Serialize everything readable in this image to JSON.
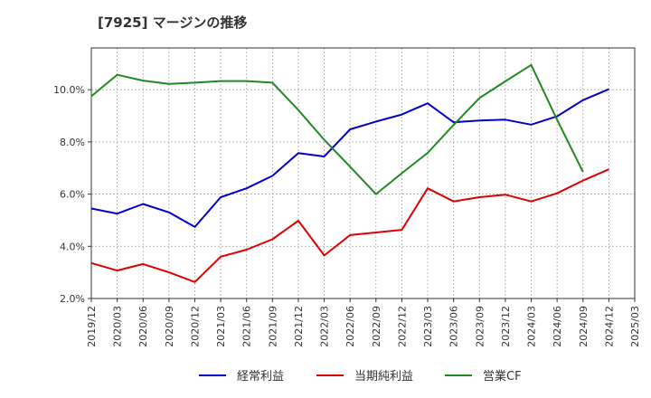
{
  "chart_data": {
    "type": "line",
    "title": "[7925]  マージンの推移",
    "xlabel": "",
    "ylabel": "",
    "y_unit": "%",
    "ylim": [
      2.0,
      11.6
    ],
    "y_ticks": [
      2.0,
      4.0,
      6.0,
      8.0,
      10.0
    ],
    "y_tick_labels": [
      "2.0%",
      "4.0%",
      "6.0%",
      "8.0%",
      "10.0%"
    ],
    "grid": true,
    "legend_position": "bottom",
    "categories": [
      "2019/12",
      "2020/03",
      "2020/06",
      "2020/09",
      "2020/12",
      "2021/03",
      "2021/06",
      "2021/09",
      "2021/12",
      "2022/03",
      "2022/06",
      "2022/09",
      "2022/12",
      "2023/03",
      "2023/06",
      "2023/09",
      "2023/12",
      "2024/03",
      "2024/06",
      "2024/09",
      "2024/12",
      "2025/03"
    ],
    "series": [
      {
        "name": "経常利益",
        "color": "#0000cc",
        "values": [
          5.45,
          5.25,
          5.62,
          5.3,
          4.74,
          5.88,
          6.22,
          6.7,
          7.57,
          7.44,
          8.48,
          8.78,
          9.05,
          9.48,
          8.75,
          8.82,
          8.85,
          8.66,
          8.98,
          9.6,
          10.02,
          null
        ]
      },
      {
        "name": "当期純利益",
        "color": "#dd0000",
        "values": [
          3.36,
          3.07,
          3.32,
          3.0,
          2.63,
          3.6,
          3.87,
          4.27,
          4.98,
          3.65,
          4.43,
          4.53,
          4.63,
          6.22,
          5.72,
          5.88,
          5.98,
          5.72,
          6.03,
          6.52,
          6.95,
          null
        ]
      },
      {
        "name": "営業CF",
        "color": "#228822",
        "values": [
          9.75,
          10.57,
          10.35,
          10.22,
          10.27,
          10.33,
          10.33,
          10.27,
          9.22,
          8.08,
          7.05,
          6.0,
          6.8,
          7.58,
          8.65,
          9.68,
          10.32,
          10.95,
          8.85,
          6.85,
          null,
          null
        ]
      }
    ]
  }
}
